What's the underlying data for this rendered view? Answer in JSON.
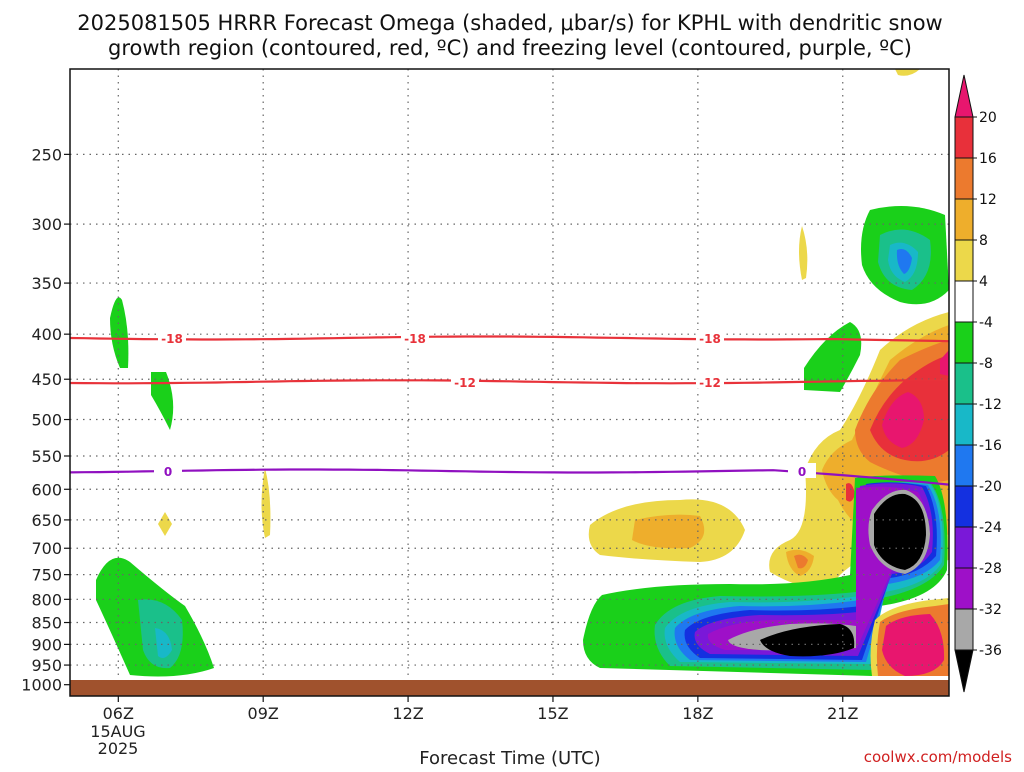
{
  "title_line1": "2025081505 HRRR Forecast Omega (shaded, μbar/s) for KPHL with dendritic snow",
  "title_line2": "growth region (contoured, red, ºC) and freezing level (contoured, purple, ºC)",
  "credit": "coolwx.com/models",
  "chart_data": {
    "type": "heatmap",
    "xlabel": "Forecast Time (UTC)",
    "ylabel": "",
    "x_ticks": [
      "06Z",
      "09Z",
      "12Z",
      "15Z",
      "18Z",
      "21Z"
    ],
    "x_tick_hours": [
      6,
      9,
      12,
      15,
      18,
      21
    ],
    "x_date_label": "15AUG",
    "x_year_label": "2025",
    "xlim_hours": [
      5,
      23.2
    ],
    "y_ticks": [
      250,
      300,
      350,
      400,
      450,
      500,
      550,
      600,
      650,
      700,
      750,
      800,
      850,
      900,
      950,
      1000
    ],
    "y_scale": "log",
    "ylim_hPa": [
      200,
      1030
    ],
    "grid": true,
    "colorbar_levels": [
      20,
      16,
      12,
      8,
      4,
      -4,
      -8,
      -12,
      -16,
      -20,
      -24,
      -28,
      -32,
      -36
    ],
    "colorbar_colors": [
      "#e8166e",
      "#e8303a",
      "#ec7a2e",
      "#eeae2c",
      "#ecd84a",
      "#ffffff",
      "#1ad01a",
      "#1ac08a",
      "#18b8c8",
      "#1f78f0",
      "#1430e0",
      "#7a18d8",
      "#9e10c8",
      "#a8a8a8",
      "#000000"
    ],
    "contours": [
      {
        "label": "-18",
        "color": "#e8323a",
        "level_hPa": 404
      },
      {
        "label": "-12",
        "color": "#e8323a",
        "level_hPa": 453
      },
      {
        "label": "0",
        "color": "#9010c0",
        "level_hPa": 572
      }
    ],
    "terrain_color": "#a0522d"
  }
}
